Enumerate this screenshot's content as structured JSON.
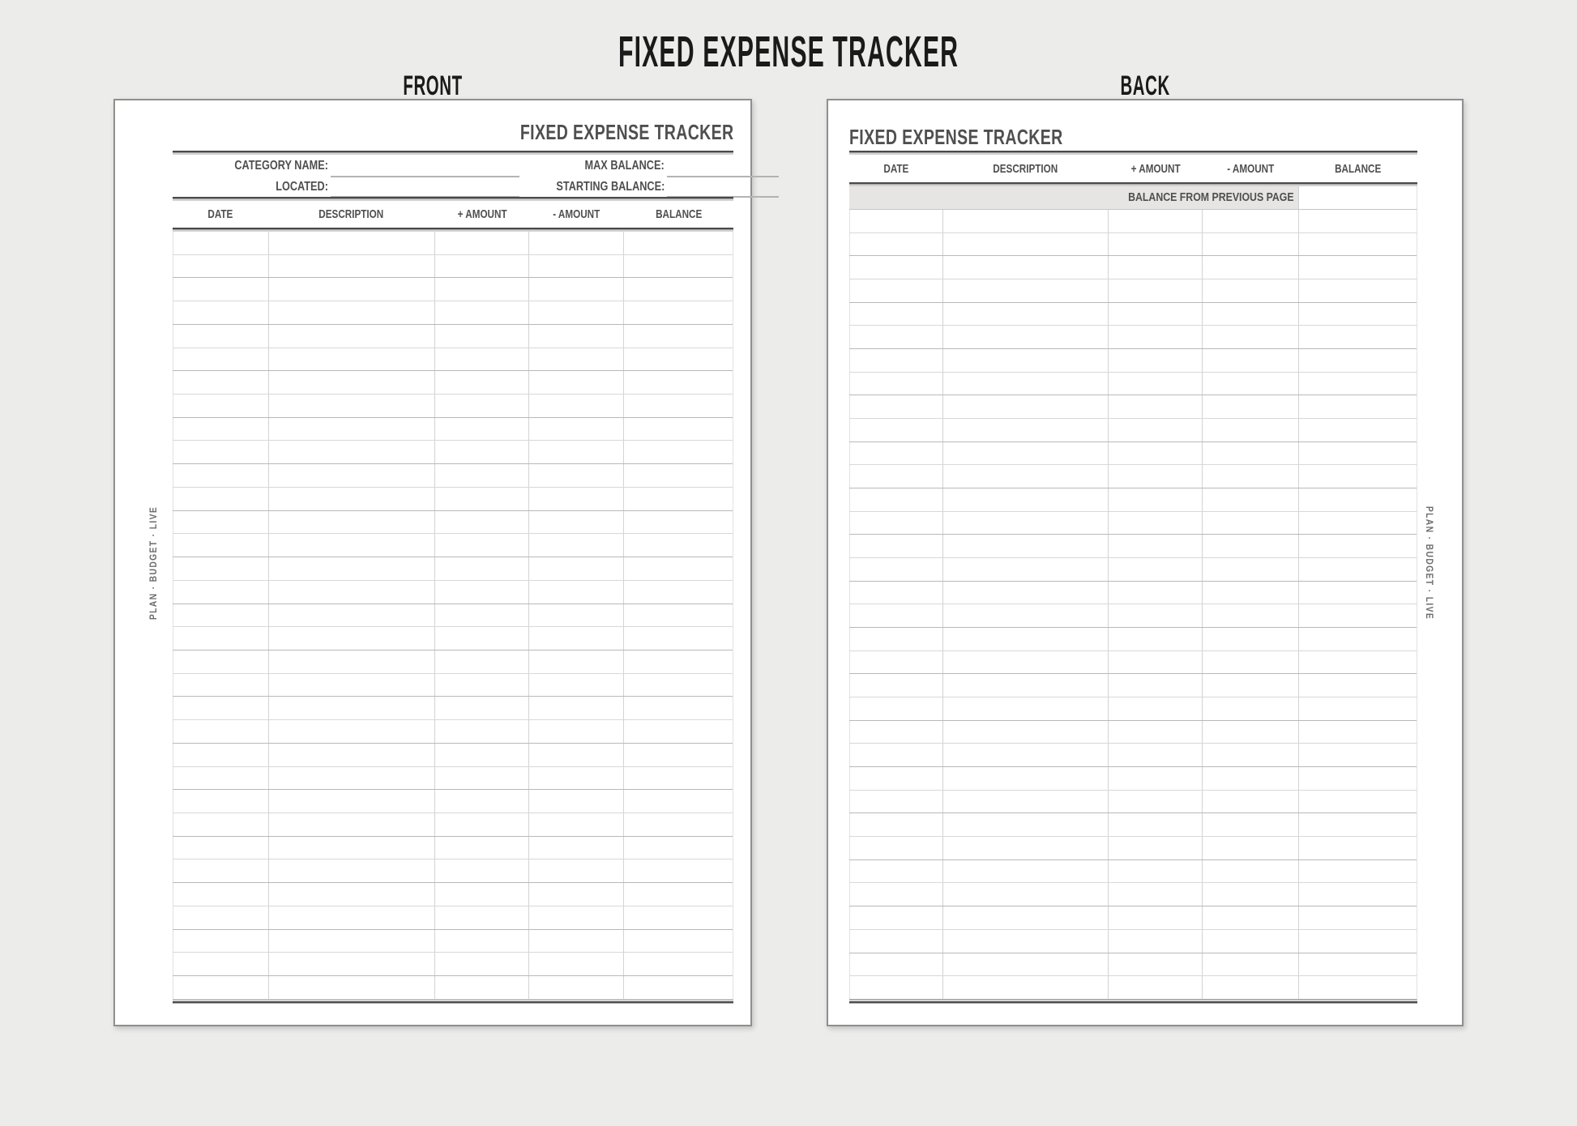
{
  "document_title": "FIXED EXPENSE TRACKER",
  "front_label": "FRONT",
  "back_label": "BACK",
  "front": {
    "title": "FIXED EXPENSE TRACKER",
    "fields": {
      "category_name_label": "CATEGORY NAME:",
      "located_label": "LOCATED:",
      "max_balance_label": "MAX BALANCE:",
      "starting_balance_label": "STARTING BALANCE:"
    },
    "columns": [
      "DATE",
      "DESCRIPTION",
      "+ AMOUNT",
      "- AMOUNT",
      "BALANCE"
    ],
    "row_count": 33,
    "side_text": "PLAN · BUDGET · LIVE"
  },
  "back": {
    "title": "FIXED EXPENSE TRACKER",
    "columns": [
      "DATE",
      "DESCRIPTION",
      "+ AMOUNT",
      "- AMOUNT",
      "BALANCE"
    ],
    "balance_row_label": "BALANCE FROM PREVIOUS PAGE",
    "row_count": 34,
    "side_text": "PLAN · BUDGET · LIVE"
  },
  "colors": {
    "canvas_bg": "#ececea",
    "page_bg": "#ffffff",
    "page_border": "#8f8f8f",
    "ink_dark": "#1a1a1a",
    "ink_gray": "#4f4f4f",
    "rule": "#4a4a4a",
    "row_line_light": "#d8d8d8",
    "row_line_dark": "#b9b9b9",
    "col_line": "#d3d3d3",
    "field_line": "#b3b3b3",
    "shaded_row_bg": "#e6e5e3",
    "side_text": "#6b6b6b"
  }
}
